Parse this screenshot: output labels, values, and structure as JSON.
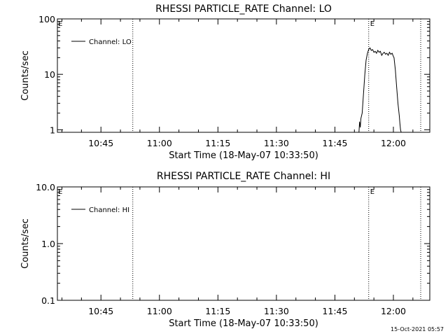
{
  "footer": {
    "timestamp": "15-Oct-2021 05:57"
  },
  "chart_data": [
    {
      "type": "line",
      "title": "RHESSI PARTICLE_RATE Channel: LO",
      "xlabel": "Start Time (18-May-07 10:33:50)",
      "ylabel": "Counts/sec",
      "yscale": "log",
      "ylim": [
        0.9,
        100
      ],
      "xlim": [
        "10:33:50",
        "12:09:20"
      ],
      "x_ticks": [
        "10:45",
        "11:00",
        "11:15",
        "11:30",
        "11:45",
        "12:00"
      ],
      "y_ticks": [
        "1",
        "10",
        "100"
      ],
      "legend": {
        "position": "top-left",
        "entries": [
          "Channel: LO"
        ]
      },
      "vlines": [
        {
          "x": "10:53:10",
          "label": ""
        },
        {
          "x": "11:53:40",
          "label": "E"
        },
        {
          "x": "12:07:00",
          "label": ""
        }
      ],
      "corner_label": "E",
      "series": [
        {
          "name": "Channel: LO",
          "x": [
            "11:51:10",
            "11:51:20",
            "11:51:30",
            "11:51:40",
            "11:52:00",
            "11:52:20",
            "11:52:40",
            "11:53:00",
            "11:53:20",
            "11:53:40",
            "11:54:00",
            "11:54:20",
            "11:54:40",
            "11:55:00",
            "11:55:20",
            "11:55:40",
            "11:56:00",
            "11:56:20",
            "11:56:40",
            "11:57:00",
            "11:57:20",
            "11:57:40",
            "11:58:00",
            "11:58:20",
            "11:58:40",
            "11:59:00",
            "11:59:20",
            "11:59:40",
            "12:00:00",
            "12:00:10",
            "12:00:30",
            "12:00:50",
            "12:01:10",
            "12:01:30",
            "12:01:40",
            "12:01:50",
            "12:02:00"
          ],
          "y": [
            0.9,
            1.4,
            1.1,
            1.6,
            2.0,
            4.5,
            10,
            18,
            24,
            28,
            30,
            27,
            28,
            25,
            26,
            24,
            27,
            25,
            26,
            22,
            24,
            25,
            23,
            24,
            22,
            25,
            23,
            24,
            21,
            20,
            12,
            6.0,
            3.0,
            1.8,
            1.3,
            1.0,
            0.9
          ]
        }
      ]
    },
    {
      "type": "line",
      "title": "RHESSI PARTICLE_RATE Channel: HI",
      "xlabel": "Start Time (18-May-07 10:33:50)",
      "ylabel": "Counts/sec",
      "yscale": "log",
      "ylim": [
        0.1,
        10
      ],
      "xlim": [
        "10:33:50",
        "12:09:20"
      ],
      "x_ticks": [
        "10:45",
        "11:00",
        "11:15",
        "11:30",
        "11:45",
        "12:00"
      ],
      "y_ticks": [
        "0.1",
        "1.0",
        "10.0"
      ],
      "legend": {
        "position": "top-left",
        "entries": [
          "Channel: HI"
        ]
      },
      "vlines": [
        {
          "x": "10:53:10",
          "label": ""
        },
        {
          "x": "11:53:40",
          "label": "E"
        },
        {
          "x": "12:07:00",
          "label": ""
        }
      ],
      "corner_label": "E",
      "series": [
        {
          "name": "Channel: HI",
          "x": [],
          "y": []
        }
      ]
    }
  ]
}
